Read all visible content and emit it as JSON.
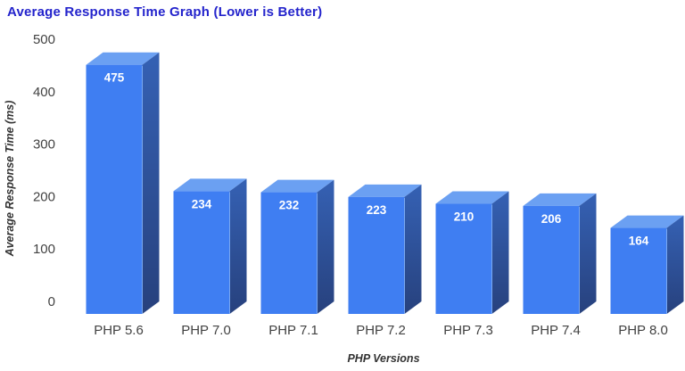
{
  "chart_data": {
    "type": "bar",
    "style": "3d-column",
    "title": "Average Response Time Graph (Lower is Better)",
    "xlabel": "PHP Versions",
    "ylabel": "Average Response Time (ms)",
    "categories": [
      "PHP 5.6",
      "PHP 7.0",
      "PHP 7.1",
      "PHP 7.2",
      "PHP 7.3",
      "PHP 7.4",
      "PHP 8.0"
    ],
    "values": [
      475,
      234,
      232,
      223,
      210,
      206,
      164
    ],
    "ylim": [
      0,
      500
    ],
    "yticks": [
      0,
      100,
      200,
      300,
      400,
      500
    ],
    "legend": "none",
    "grid": "off",
    "value_labels_visible": true,
    "colors": {
      "background": "#ffffff",
      "title": "#2424cc",
      "axis_text": "#424242",
      "axis_title_text": "#333333",
      "bar_front": "#3f7ef2",
      "bar_top": "#6ba0f2",
      "bar_side_top": "#3561b4",
      "bar_side_bottom": "#27417d",
      "bar_edge_highlight": "#82b0f6",
      "value_label": "#ffffff"
    }
  }
}
